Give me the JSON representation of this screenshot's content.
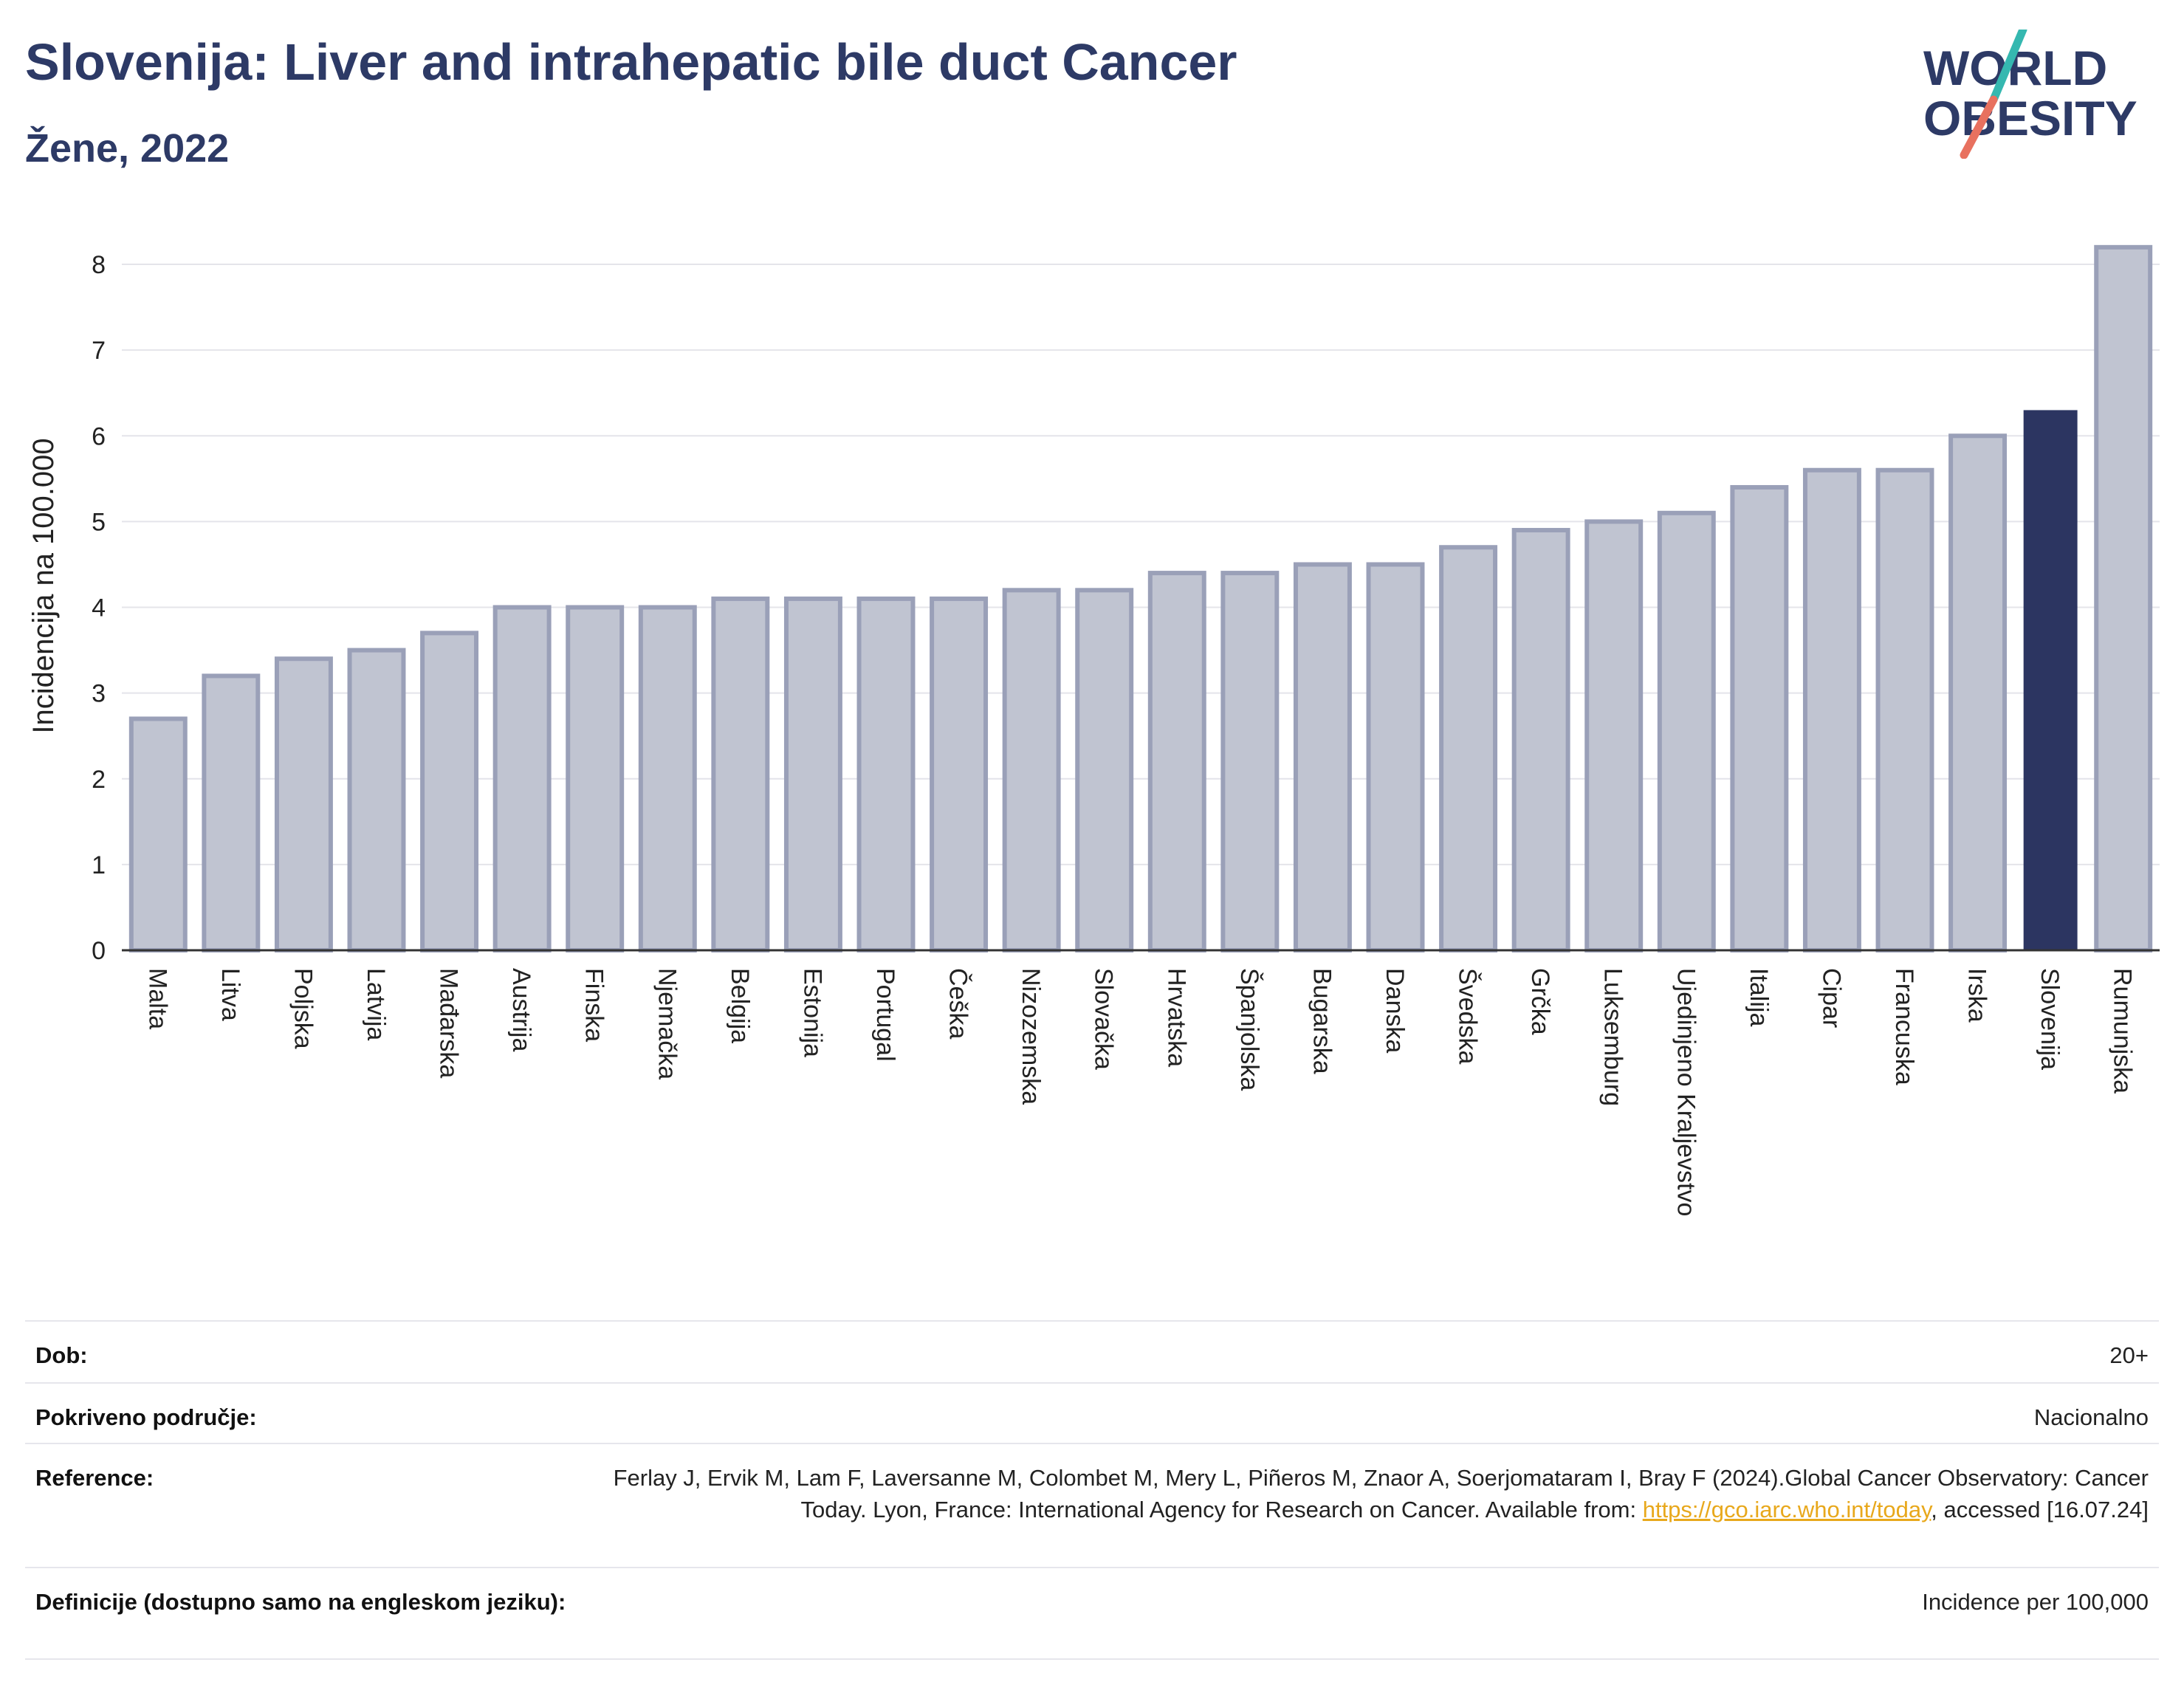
{
  "header": {
    "title": "Slovenija: Liver and intrahepatic bile duct Cancer",
    "subtitle": "Žene, 2022"
  },
  "logo": {
    "line1": "WORLD",
    "line2": "OBESITY"
  },
  "chart_data": {
    "type": "bar",
    "ylabel": "Incidencija na 100.000",
    "xlabel": "",
    "ylim": [
      0,
      8.5
    ],
    "yticks": [
      0,
      1,
      2,
      3,
      4,
      5,
      6,
      7,
      8
    ],
    "grid": true,
    "highlight": "Slovenija",
    "colors": {
      "bar": "#c0c4d1",
      "bar_edge": "#9aa0b8",
      "highlight": "#2c3561",
      "grid": "#e4e4ea"
    },
    "categories": [
      "Malta",
      "Litva",
      "Poljska",
      "Latvija",
      "Mađarska",
      "Austrija",
      "Finska",
      "Njemačka",
      "Belgija",
      "Estonija",
      "Portugal",
      "Češka",
      "Nizozemska",
      "Slovačka",
      "Hrvatska",
      "Španjolska",
      "Bugarska",
      "Danska",
      "Švedska",
      "Grčka",
      "Luksemburg",
      "Ujedinjeno Kraljevstvo",
      "Italija",
      "Cipar",
      "Francuska",
      "Irska",
      "Slovenija",
      "Rumunjska"
    ],
    "values": [
      2.7,
      3.2,
      3.4,
      3.5,
      3.7,
      4.0,
      4.0,
      4.0,
      4.1,
      4.1,
      4.1,
      4.1,
      4.2,
      4.2,
      4.4,
      4.4,
      4.5,
      4.5,
      4.7,
      4.9,
      5.0,
      5.1,
      5.4,
      5.6,
      5.6,
      6.0,
      6.3,
      8.2
    ]
  },
  "info": {
    "age_label": "Dob:",
    "age_value": "20+",
    "coverage_label": "Pokriveno područje:",
    "coverage_value": "Nacionalno",
    "reference_label": "Reference:",
    "reference_text_1": "Ferlay J, Ervik M, Lam F, Laversanne M, Colombet M, Mery L, Piñeros M, Znaor A, Soerjomataram I, Bray F (2024).Global Cancer Observatory: Cancer Today. Lyon, France: International Agency for Research on Cancer. Available from: ",
    "reference_link": "https://gco.iarc.who.int/today",
    "reference_text_2": ", accessed [16.07.24]",
    "definitions_label": "Definicije (dostupno samo na engleskom jeziku):",
    "definitions_value": "Incidence per 100,000"
  }
}
